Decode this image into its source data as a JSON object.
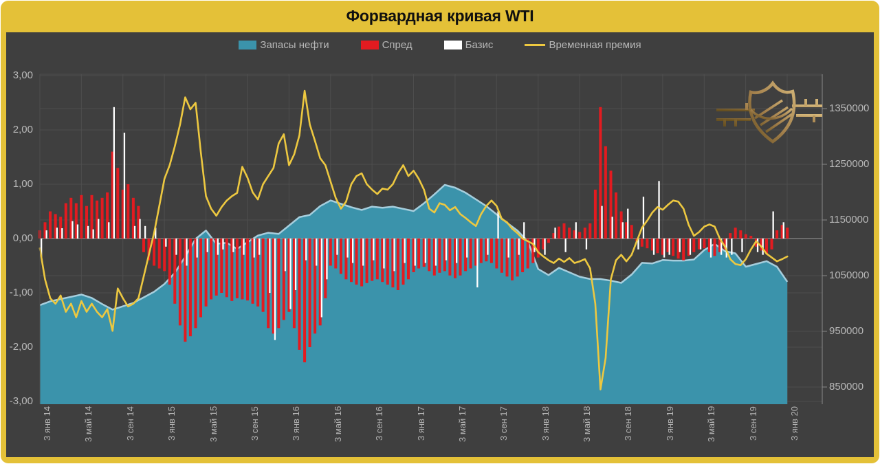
{
  "window": {
    "title": "Форвардная кривая WTI"
  },
  "legend": {
    "items": [
      {
        "label": "Запасы нефти",
        "swatch": "area",
        "color": "#3b93ab"
      },
      {
        "label": "Спред",
        "swatch": "bar",
        "color": "#e31b20"
      },
      {
        "label": "Базис",
        "swatch": "bar",
        "color": "#ffffff"
      },
      {
        "label": "Временная премия",
        "swatch": "line",
        "color": "#edc840"
      }
    ]
  },
  "icons": {
    "logo": "gold-shield-railway-emblem-watermark"
  },
  "colors": {
    "frame": "#e4c138",
    "panel": "#3f3f3f",
    "grid": "#4e4e4e",
    "zero_line": "#9a9a9a",
    "axis_line": "#8a8a8a",
    "inventories": "#3b93ab",
    "inventories_edge": "#a6cedd",
    "spread": "#e31b20",
    "basis": "#ffffff",
    "premium": "#edc840",
    "text": "#b8b8b8",
    "title_text": "#101010",
    "logo_gold": "#b08d57"
  },
  "chart_data": {
    "type": "composite",
    "title": "Форвардная кривая WTI",
    "grid": true,
    "legend_position": "top",
    "x_tick_labels": [
      "3 янв 14",
      "3 май 14",
      "3 сен 14",
      "3 янв 15",
      "3 май 15",
      "3 сен 15",
      "3 янв 16",
      "3 май 16",
      "3 сен 16",
      "3 янв 17",
      "3 май 17",
      "3 сен 17",
      "3 янв 18",
      "3 май 18",
      "3 сен 18",
      "3 янв 19",
      "3 май 19",
      "3 сен 19",
      "3 янв 20"
    ],
    "left_axis": {
      "tick_labels": [
        "3,00",
        "2,00",
        "1,00",
        "0,00",
        "-1,00",
        "-2,00",
        "-3,00"
      ],
      "tick_values": [
        3,
        2,
        1,
        0,
        -1,
        -2,
        -3
      ],
      "min": -3,
      "max": 3
    },
    "right_axis": {
      "tick_labels": [
        "1350000",
        "1250000",
        "1150000",
        "1050000",
        "950000",
        "850000"
      ],
      "tick_values": [
        1350000,
        1250000,
        1150000,
        1050000,
        950000,
        850000
      ],
      "min": 850000,
      "max": 1350000
    },
    "series": [
      {
        "name": "Запасы нефти",
        "type": "area",
        "axis": "right",
        "values": [
          997000,
          1004000,
          1008000,
          1012000,
          1016000,
          1010000,
          999000,
          989000,
          995000,
          1001000,
          1011000,
          1021000,
          1035000,
          1055000,
          1084000,
          1116000,
          1131000,
          1107000,
          1109000,
          1098000,
          1110000,
          1122000,
          1127000,
          1125000,
          1140000,
          1155000,
          1159000,
          1175000,
          1185000,
          1179000,
          1173000,
          1168000,
          1174000,
          1172000,
          1174000,
          1170000,
          1166000,
          1180000,
          1196000,
          1213000,
          1208000,
          1199000,
          1187000,
          1175000,
          1160000,
          1145000,
          1131000,
          1112000,
          1062000,
          1051000,
          1064000,
          1056000,
          1048000,
          1044000,
          1044000,
          1041000,
          1037000,
          1052000,
          1073000,
          1072000,
          1078000,
          1077000,
          1077000,
          1079000,
          1096000,
          1107000,
          1094000,
          1090000,
          1066000,
          1071000,
          1076000,
          1066000,
          1039000
        ]
      },
      {
        "name": "Спред",
        "type": "bar",
        "axis": "left",
        "values": [
          0.15,
          0.3,
          0.5,
          0.45,
          0.4,
          0.65,
          0.75,
          0.65,
          0.8,
          0.6,
          0.8,
          0.7,
          0.75,
          0.85,
          1.6,
          1.3,
          0.9,
          1.0,
          0.75,
          0.6,
          -0.25,
          -0.4,
          -0.5,
          -0.55,
          -0.6,
          -0.85,
          -1.2,
          -1.6,
          -1.9,
          -1.8,
          -1.65,
          -1.45,
          -1.25,
          -1.12,
          -1.05,
          -1.0,
          -1.08,
          -1.15,
          -1.1,
          -1.12,
          -1.14,
          -1.2,
          -1.25,
          -1.35,
          -1.65,
          -1.75,
          -1.65,
          -1.5,
          -1.35,
          -1.65,
          -2.05,
          -2.28,
          -2.0,
          -1.75,
          -1.6,
          -1.1,
          -0.5,
          -0.55,
          -0.65,
          -0.75,
          -0.8,
          -0.85,
          -0.88,
          -0.82,
          -0.78,
          -0.75,
          -0.8,
          -0.85,
          -0.9,
          -0.95,
          -0.85,
          -0.75,
          -0.62,
          -0.55,
          -0.52,
          -0.6,
          -0.68,
          -0.63,
          -0.6,
          -0.68,
          -0.73,
          -0.68,
          -0.6,
          -0.55,
          -0.5,
          -0.45,
          -0.42,
          -0.45,
          -0.55,
          -0.63,
          -0.7,
          -0.77,
          -0.7,
          -0.62,
          -0.55,
          -0.45,
          -0.35,
          -0.2,
          -0.08,
          0.1,
          0.22,
          0.28,
          0.2,
          0.15,
          0.12,
          0.2,
          0.28,
          0.9,
          2.42,
          1.7,
          1.25,
          0.85,
          0.5,
          0.3,
          0.25,
          -0.05,
          -0.15,
          -0.18,
          -0.22,
          -0.27,
          -0.3,
          -0.25,
          -0.32,
          -0.37,
          -0.4,
          -0.32,
          -0.25,
          -0.2,
          -0.18,
          -0.25,
          -0.32,
          -0.25,
          -0.2,
          0.1,
          0.2,
          0.15,
          0.08,
          0.05,
          -0.15,
          -0.22,
          -0.28,
          -0.2,
          0.15,
          0.25,
          0.2
        ]
      },
      {
        "name": "Базис",
        "type": "bar",
        "axis": "left",
        "values": [
          -0.36,
          0.15,
          0,
          0.2,
          0.19,
          0,
          0.32,
          0.26,
          0,
          0.23,
          0.17,
          0.36,
          0,
          0.3,
          2.42,
          0,
          1.95,
          0,
          0.23,
          0.36,
          0.23,
          0,
          0.2,
          0,
          -0.15,
          0,
          -0.3,
          0,
          -0.5,
          0,
          -0.35,
          0,
          -0.25,
          0,
          -0.3,
          -0.2,
          0,
          -0.25,
          0,
          -0.3,
          0,
          -0.35,
          -0.3,
          0,
          -1.0,
          -1.87,
          0,
          -0.6,
          -1.3,
          -0.95,
          0,
          -0.4,
          0,
          -0.5,
          -1.45,
          -0.75,
          0,
          -0.3,
          0,
          -0.35,
          -0.45,
          0,
          -0.5,
          0,
          -0.4,
          0,
          -0.55,
          0,
          -0.6,
          0,
          -0.45,
          0,
          -0.5,
          0,
          -0.45,
          0,
          -0.5,
          0,
          -0.4,
          0,
          -0.45,
          0,
          -0.35,
          0,
          -0.9,
          0,
          -0.3,
          0,
          0.5,
          0,
          -0.35,
          0,
          -0.3,
          0.3,
          0,
          -0.25,
          0,
          -0.3,
          0,
          0.2,
          0,
          -0.25,
          0,
          0.3,
          0,
          -0.2,
          0,
          0,
          0.6,
          0,
          0.4,
          0,
          0.3,
          0.55,
          0,
          -0.2,
          0.77,
          0,
          -0.3,
          1.06,
          -0.35,
          -0.3,
          0,
          -0.25,
          0,
          -0.3,
          0,
          -0.2,
          0,
          -0.35,
          0,
          -0.3,
          -0.35,
          -0.3,
          0,
          -0.25,
          0,
          0,
          -0.25,
          -0.3,
          0,
          0.5,
          0,
          0.3,
          0
        ]
      },
      {
        "name": "Временная премия",
        "type": "line",
        "axis": "left",
        "values": [
          -0.18,
          -0.75,
          -1.1,
          -1.2,
          -1.05,
          -1.35,
          -1.2,
          -1.45,
          -1.15,
          -1.35,
          -1.2,
          -1.35,
          -1.45,
          -1.3,
          -1.7,
          -0.92,
          -1.1,
          -1.25,
          -1.2,
          -1.1,
          -0.7,
          -0.3,
          0.1,
          0.6,
          1.1,
          1.35,
          1.7,
          2.1,
          2.6,
          2.38,
          2.5,
          1.6,
          0.78,
          0.55,
          0.42,
          0.58,
          0.7,
          0.78,
          0.84,
          1.32,
          1.12,
          0.85,
          0.72,
          1.0,
          1.15,
          1.3,
          1.75,
          1.92,
          1.35,
          1.55,
          1.9,
          2.72,
          2.1,
          1.8,
          1.48,
          1.35,
          1.05,
          0.75,
          0.55,
          0.68,
          1.0,
          1.15,
          1.2,
          1.0,
          0.9,
          0.82,
          0.92,
          0.9,
          1.0,
          1.2,
          1.35,
          1.15,
          1.25,
          1.1,
          0.9,
          0.55,
          0.48,
          0.65,
          0.62,
          0.52,
          0.58,
          0.45,
          0.38,
          0.3,
          0.23,
          0.45,
          0.6,
          0.7,
          0.6,
          0.36,
          0.3,
          0.18,
          0.1,
          0.0,
          -0.05,
          -0.1,
          -0.25,
          -0.33,
          -0.4,
          -0.45,
          -0.37,
          -0.43,
          -0.36,
          -0.45,
          -0.42,
          -0.38,
          -0.55,
          -1.2,
          -2.78,
          -2.2,
          -0.75,
          -0.4,
          -0.3,
          -0.42,
          -0.3,
          -0.05,
          0.2,
          0.33,
          0.48,
          0.58,
          0.53,
          0.62,
          0.7,
          0.68,
          0.55,
          0.25,
          0.05,
          0.12,
          0.22,
          0.26,
          0.22,
          0.0,
          -0.15,
          -0.38,
          -0.47,
          -0.49,
          -0.38,
          -0.2,
          -0.05,
          -0.15,
          -0.28,
          -0.35,
          -0.42,
          -0.38,
          -0.33
        ]
      }
    ]
  }
}
